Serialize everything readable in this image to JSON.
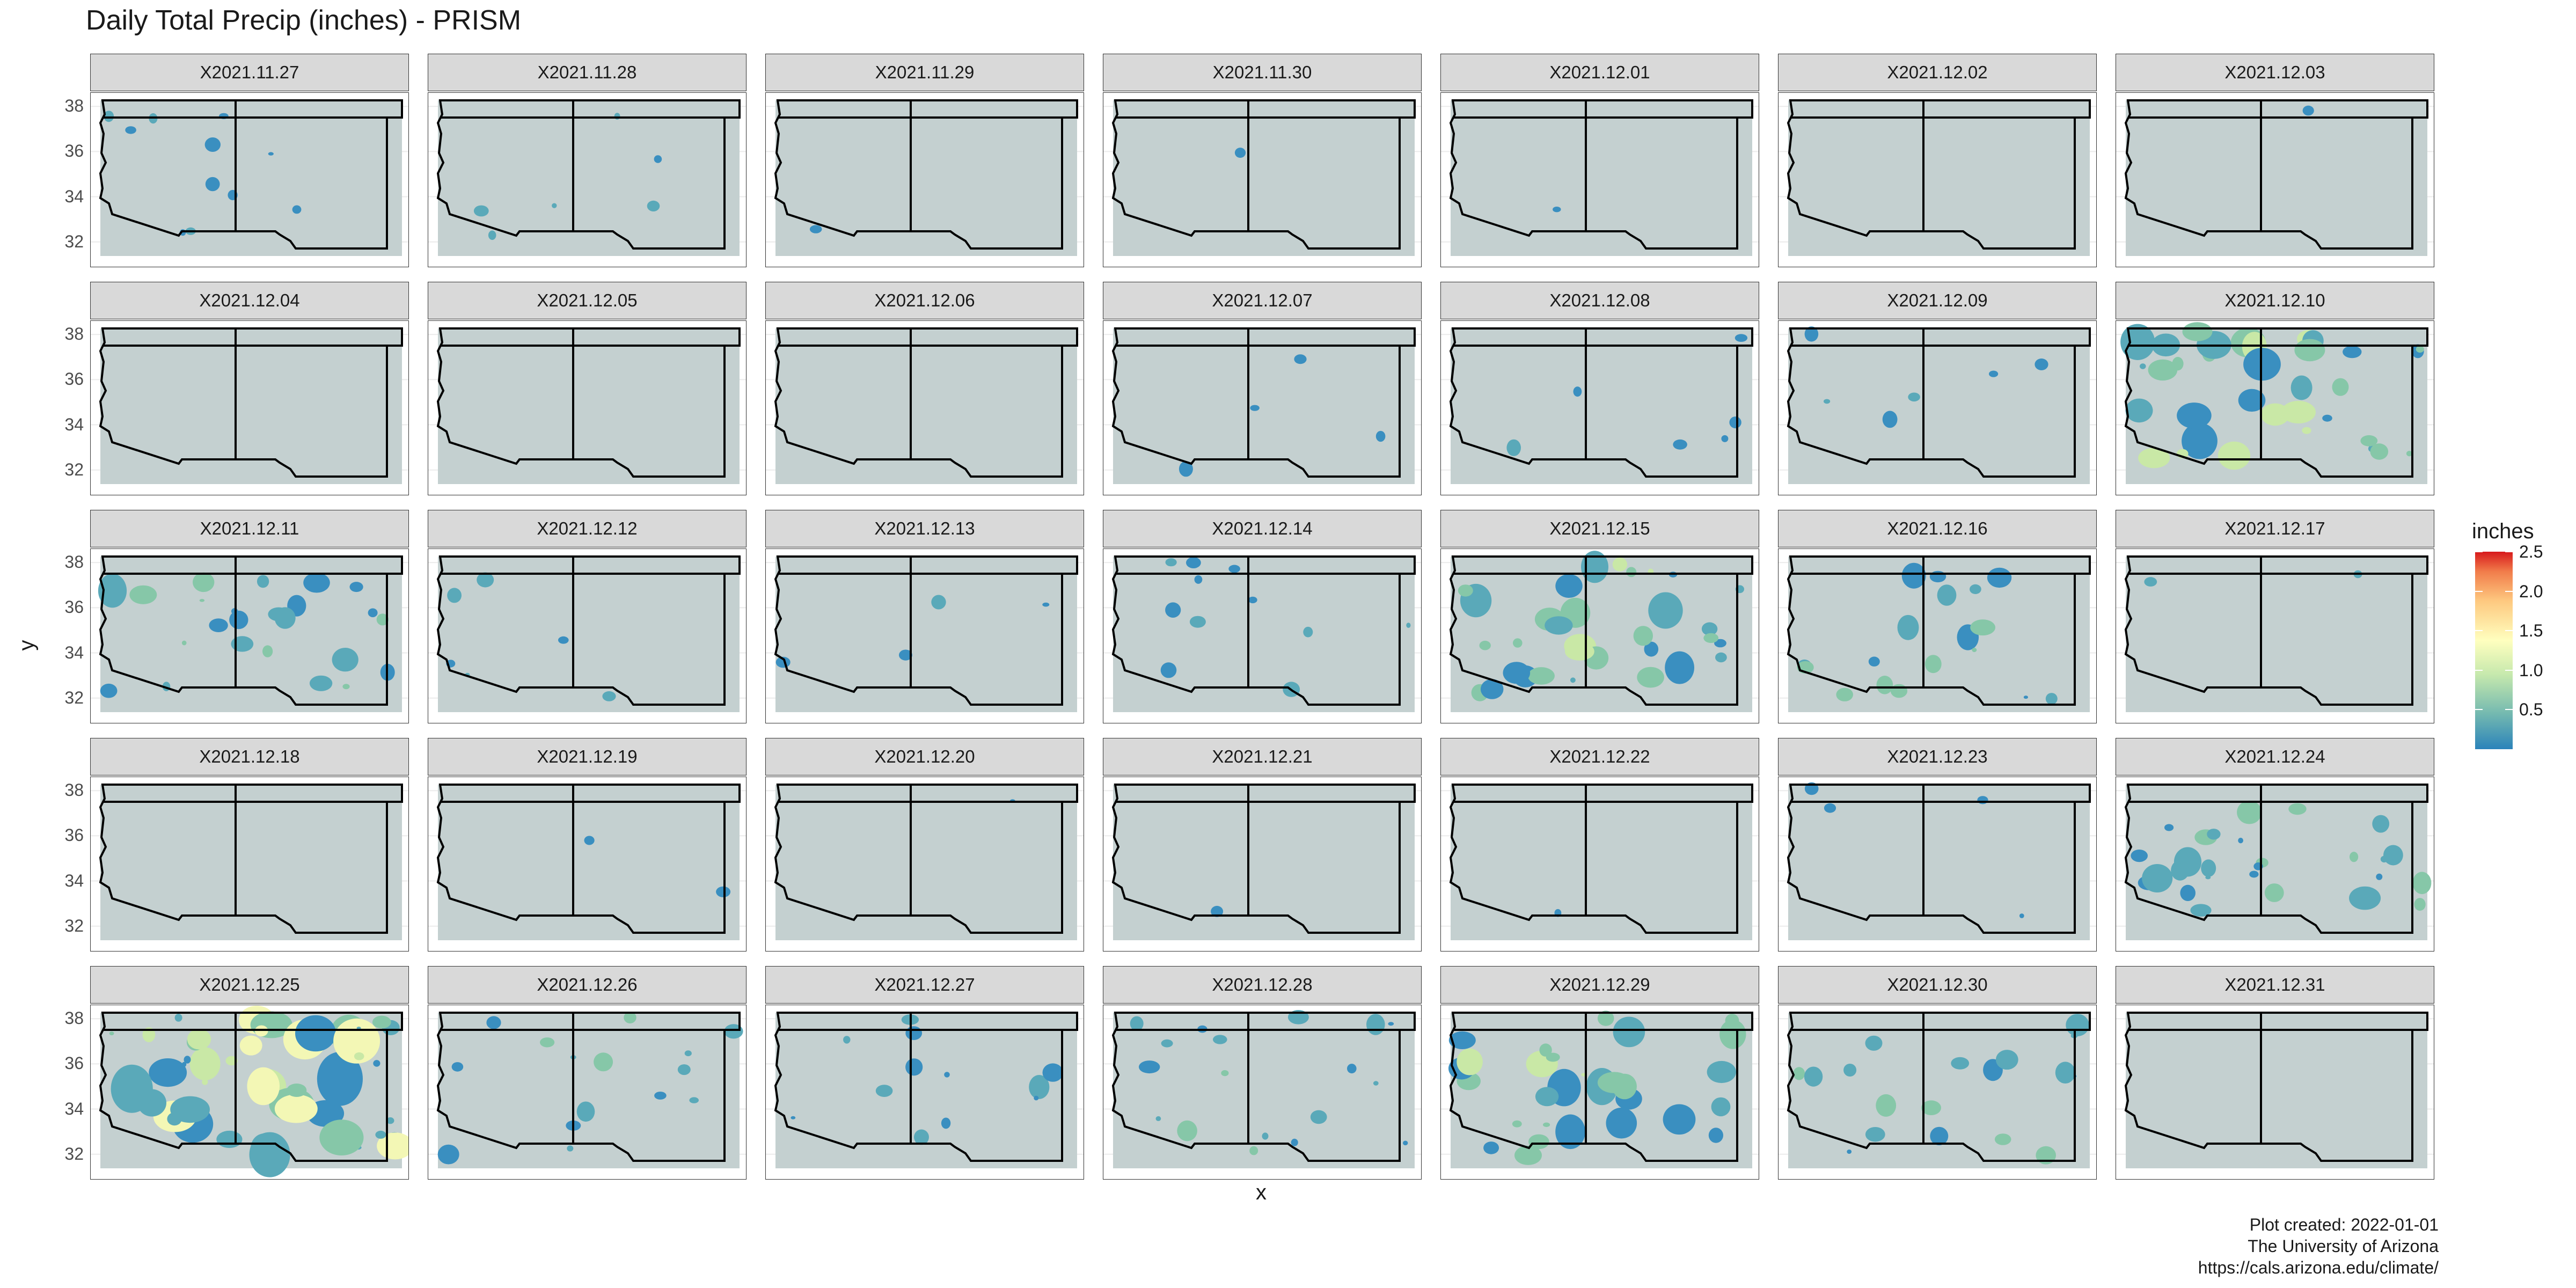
{
  "chart_data": {
    "type": "heatmap",
    "title": "Daily Total Precip (inches) - PRISM",
    "xlabel": "x",
    "ylabel": "y",
    "y_ticks": [
      32,
      34,
      36,
      38
    ],
    "ylim": [
      30.9,
      38.6
    ],
    "facet_layout": {
      "rows": 5,
      "cols": 7
    },
    "panels": [
      {
        "label": "X2021.11.27",
        "level": 0.18
      },
      {
        "label": "X2021.11.28",
        "level": 0.1
      },
      {
        "label": "X2021.11.29",
        "level": 0.02
      },
      {
        "label": "X2021.11.30",
        "level": 0.01
      },
      {
        "label": "X2021.12.01",
        "level": 0.01
      },
      {
        "label": "X2021.12.02",
        "level": 0.0
      },
      {
        "label": "X2021.12.03",
        "level": 0.01
      },
      {
        "label": "X2021.12.04",
        "level": 0.0
      },
      {
        "label": "X2021.12.05",
        "level": 0.0
      },
      {
        "label": "X2021.12.06",
        "level": 0.0
      },
      {
        "label": "X2021.12.07",
        "level": 0.06
      },
      {
        "label": "X2021.12.08",
        "level": 0.1
      },
      {
        "label": "X2021.12.09",
        "level": 0.1
      },
      {
        "label": "X2021.12.10",
        "level": 0.6
      },
      {
        "label": "X2021.12.11",
        "level": 0.4
      },
      {
        "label": "X2021.12.12",
        "level": 0.1
      },
      {
        "label": "X2021.12.13",
        "level": 0.06
      },
      {
        "label": "X2021.12.14",
        "level": 0.2
      },
      {
        "label": "X2021.12.15",
        "level": 0.55
      },
      {
        "label": "X2021.12.16",
        "level": 0.3
      },
      {
        "label": "X2021.12.17",
        "level": 0.04
      },
      {
        "label": "X2021.12.18",
        "level": 0.0
      },
      {
        "label": "X2021.12.19",
        "level": 0.04
      },
      {
        "label": "X2021.12.20",
        "level": 0.02
      },
      {
        "label": "X2021.12.21",
        "level": 0.02
      },
      {
        "label": "X2021.12.22",
        "level": 0.02
      },
      {
        "label": "X2021.12.23",
        "level": 0.06
      },
      {
        "label": "X2021.12.24",
        "level": 0.45
      },
      {
        "label": "X2021.12.25",
        "level": 0.8
      },
      {
        "label": "X2021.12.26",
        "level": 0.25
      },
      {
        "label": "X2021.12.27",
        "level": 0.2
      },
      {
        "label": "X2021.12.28",
        "level": 0.3
      },
      {
        "label": "X2021.12.29",
        "level": 0.5
      },
      {
        "label": "X2021.12.30",
        "level": 0.3
      },
      {
        "label": "X2021.12.31",
        "level": 0.0
      }
    ],
    "legend": {
      "title": "inches",
      "range": [
        0,
        2.5
      ],
      "breaks": [
        "0.5",
        "1.0",
        "1.5",
        "2.0",
        "2.5"
      ],
      "colors": [
        "#2b83ba",
        "#abdda4",
        "#ffffbf",
        "#fdae61",
        "#d7191c"
      ],
      "placement": "right"
    }
  },
  "caption": {
    "line1": "Plot created: 2022-01-01",
    "line2": "The University of Arizona",
    "line3": "https://cals.arizona.edu/climate/"
  }
}
